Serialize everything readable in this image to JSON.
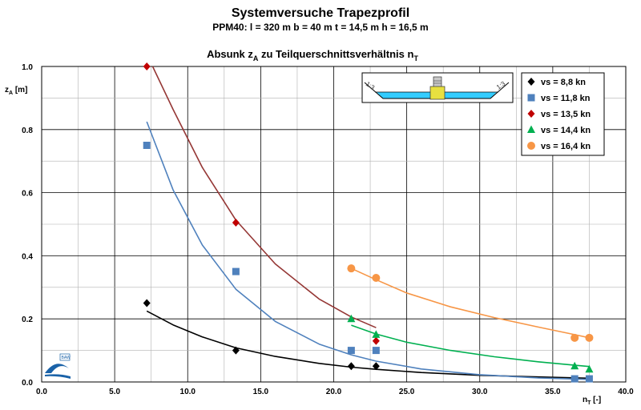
{
  "chart_data": {
    "type": "scatter",
    "title": "Systemversuche Trapezprofil",
    "subtitle": "PPM40: l = 320 m b = 40 m t = 14,5 m h = 16,5 m",
    "plot_title": {
      "main": "Absunk z",
      "sub": "A",
      "tail": " zu Teilquerschnittsverhältnis n",
      "tail_sub": "T"
    },
    "xlabel": {
      "main": "n",
      "sub": "T",
      "tail": " [-]"
    },
    "ylabel": {
      "main": "z",
      "sub": "A",
      "tail": " [m]"
    },
    "xlim": [
      0,
      40
    ],
    "ylim": [
      0,
      1
    ],
    "x_ticks": [
      "0.0",
      "5.0",
      "10.0",
      "15.0",
      "20.0",
      "25.0",
      "30.0",
      "35.0",
      "40.0"
    ],
    "y_ticks": [
      "0.0",
      "0.2",
      "0.4",
      "0.6",
      "0.8",
      "1.0"
    ],
    "grid": true,
    "legend_position": "top-right",
    "inset_labels": [
      "1:3",
      "1:3"
    ],
    "logo_text": "BAW",
    "series": [
      {
        "name": "vs = 8,8 kn",
        "color": "#000000",
        "marker": "diamond",
        "x": [
          7.2,
          13.3,
          21.2,
          22.9
        ],
        "y": [
          0.25,
          0.1,
          0.05,
          0.05
        ],
        "curve_x": [
          7.2,
          9,
          11,
          13.3,
          16,
          19,
          21.2,
          22.9,
          26,
          30,
          34,
          37.5
        ],
        "curve_y": [
          0.225,
          0.181,
          0.143,
          0.108,
          0.081,
          0.059,
          0.047,
          0.04,
          0.03,
          0.021,
          0.016,
          0.012
        ]
      },
      {
        "name": "vs = 11,8 kn",
        "color": "#4f81bd",
        "marker": "square",
        "x": [
          7.2,
          13.3,
          21.2,
          22.9,
          36.5,
          37.5
        ],
        "y": [
          0.75,
          0.35,
          0.1,
          0.1,
          0.01,
          0.01
        ],
        "curve_x": [
          7.2,
          9,
          11,
          13.3,
          16,
          19,
          21.2,
          22.9,
          26,
          30,
          34,
          37.5
        ],
        "curve_y": [
          0.825,
          0.609,
          0.434,
          0.294,
          0.192,
          0.12,
          0.086,
          0.066,
          0.041,
          0.023,
          0.013,
          0.008
        ]
      },
      {
        "name": "vs = 13,5 kn",
        "color": "#c00000",
        "marker": "diamond",
        "curve_color": "#953735",
        "x": [
          7.2,
          13.3,
          22.9
        ],
        "y": [
          1.0,
          0.505,
          0.13
        ],
        "curve_x": [
          7.6,
          9,
          11,
          13.3,
          16,
          19,
          21.2,
          22.9
        ],
        "curve_y": [
          1.0,
          0.864,
          0.68,
          0.513,
          0.374,
          0.263,
          0.206,
          0.172
        ]
      },
      {
        "name": "vs = 14,4 kn",
        "color": "#00b050",
        "marker": "triangle",
        "x": [
          21.2,
          22.9,
          36.5,
          37.5
        ],
        "y": [
          0.2,
          0.15,
          0.05,
          0.04
        ],
        "curve_x": [
          21.2,
          22.9,
          25,
          28,
          31,
          34,
          36.5,
          37.5
        ],
        "curve_y": [
          0.18,
          0.152,
          0.126,
          0.1,
          0.08,
          0.064,
          0.053,
          0.049
        ]
      },
      {
        "name": "vs = 16,4 kn",
        "color": "#f79646",
        "marker": "circle",
        "x": [
          21.2,
          22.9,
          36.5,
          37.5
        ],
        "y": [
          0.36,
          0.33,
          0.14,
          0.14
        ],
        "curve_x": [
          21.2,
          22.9,
          25,
          28,
          31,
          34,
          36.5,
          37.5
        ],
        "curve_y": [
          0.36,
          0.324,
          0.282,
          0.238,
          0.204,
          0.174,
          0.15,
          0.14
        ]
      }
    ]
  }
}
